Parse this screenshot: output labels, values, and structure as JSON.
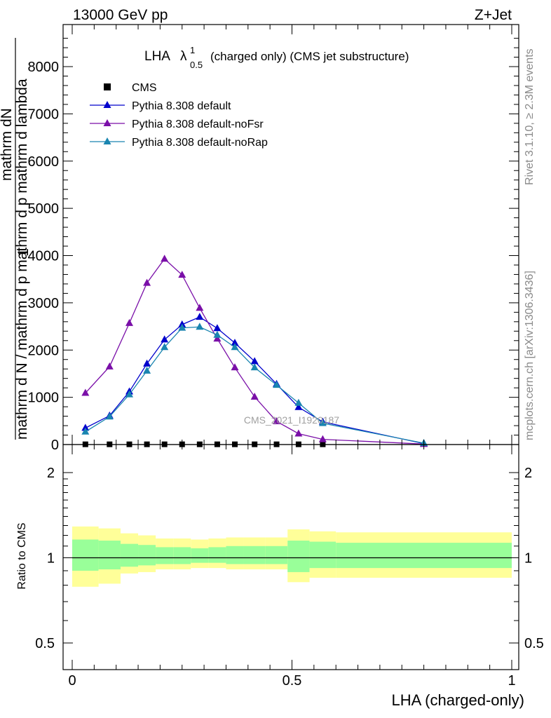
{
  "header": {
    "left": "13000 GeV pp",
    "right": "Z+Jet"
  },
  "plot_title": {
    "main": "LHA",
    "lambda": "λ",
    "superscript": "1",
    "subscript": "0.5",
    "rest": "(charged only) (CMS jet substructure)"
  },
  "side_labels": {
    "rivet": "Rivet 3.1.10, ≥ 2.3M events",
    "mcplots": "mcplots.cern.ch [arXiv:1306.3436]"
  },
  "watermark": "CMS_2021_I1920187",
  "ylabel_main": {
    "one": "1",
    "numerator": "mathrm dN",
    "denominator": "mathrm d N / mathrm d p mathrm d p mathrm d lambda"
  },
  "ylabel_ratio": "Ratio to CMS",
  "xlabel": "LHA (charged-only)",
  "colors": {
    "default": "#0000cc",
    "noFsr": "#7a0fa8",
    "noRap": "#1a85b0",
    "band_outer": "#ffff99",
    "band_inner": "#99ff99"
  },
  "chart_data": [
    {
      "type": "line",
      "title": "LHA λ^1_0.5 (charged only) (CMS jet substructure)",
      "xlim": [
        -0.02,
        1.02
      ],
      "ylim": [
        0,
        8800
      ],
      "yticks": [
        0,
        1000,
        2000,
        3000,
        4000,
        5000,
        6000,
        7000,
        8000
      ],
      "ytick_labels": [
        "0",
        "1000",
        "2000",
        "3000",
        "4000",
        "5000",
        "6000",
        "7000",
        "8000"
      ],
      "legend_position": "top-left",
      "series": [
        {
          "name": "CMS",
          "marker": "square",
          "color": "#000000",
          "x": [
            0.03,
            0.085,
            0.13,
            0.17,
            0.21,
            0.25,
            0.29,
            0.33,
            0.37,
            0.415,
            0.465,
            0.515,
            0.57
          ],
          "y": [
            5,
            5,
            5,
            5,
            5,
            5,
            5,
            5,
            5,
            5,
            5,
            5,
            5
          ]
        },
        {
          "name": "Pythia 8.308 default",
          "marker": "triangle",
          "color": "#0000cc",
          "x": [
            0.03,
            0.085,
            0.13,
            0.17,
            0.21,
            0.25,
            0.29,
            0.33,
            0.37,
            0.415,
            0.465,
            0.515,
            0.57,
            0.8
          ],
          "y": [
            350,
            610,
            1120,
            1710,
            2220,
            2540,
            2700,
            2460,
            2150,
            1760,
            1280,
            790,
            480,
            20
          ]
        },
        {
          "name": "Pythia 8.308 default-noFsr",
          "marker": "triangle",
          "color": "#7a0fa8",
          "x": [
            0.03,
            0.085,
            0.13,
            0.17,
            0.21,
            0.25,
            0.29,
            0.33,
            0.37,
            0.415,
            0.465,
            0.515,
            0.57,
            0.8
          ],
          "y": [
            1090,
            1650,
            2570,
            3420,
            3930,
            3590,
            2890,
            2240,
            1630,
            1010,
            490,
            230,
            110,
            10
          ]
        },
        {
          "name": "Pythia 8.308 default-noRap",
          "marker": "triangle",
          "color": "#1a85b0",
          "x": [
            0.03,
            0.085,
            0.13,
            0.17,
            0.21,
            0.25,
            0.29,
            0.33,
            0.37,
            0.415,
            0.465,
            0.515,
            0.57,
            0.8
          ],
          "y": [
            270,
            590,
            1060,
            1560,
            2060,
            2470,
            2490,
            2320,
            2060,
            1630,
            1260,
            880,
            450,
            30
          ]
        }
      ]
    },
    {
      "type": "area",
      "ylabel": "Ratio to CMS",
      "xlabel": "LHA (charged-only)",
      "xlim": [
        -0.02,
        1.02
      ],
      "ylim": [
        0.4,
        2.3
      ],
      "log_y": true,
      "yticks": [
        0.5,
        1,
        2
      ],
      "ytick_labels": [
        "0.5",
        "1",
        "2"
      ],
      "xticks": [
        0,
        0.5,
        1
      ],
      "xtick_labels": [
        "0",
        "0.5",
        "1"
      ],
      "reference_line": 1,
      "bins": [
        {
          "x0": 0.0,
          "x1": 0.06,
          "outer": [
            0.79,
            1.29
          ],
          "inner": [
            0.9,
            1.16
          ]
        },
        {
          "x0": 0.06,
          "x1": 0.11,
          "outer": [
            0.81,
            1.27
          ],
          "inner": [
            0.91,
            1.15
          ]
        },
        {
          "x0": 0.11,
          "x1": 0.15,
          "outer": [
            0.88,
            1.22
          ],
          "inner": [
            0.93,
            1.12
          ]
        },
        {
          "x0": 0.15,
          "x1": 0.19,
          "outer": [
            0.89,
            1.2
          ],
          "inner": [
            0.94,
            1.11
          ]
        },
        {
          "x0": 0.19,
          "x1": 0.23,
          "outer": [
            0.91,
            1.17
          ],
          "inner": [
            0.95,
            1.09
          ]
        },
        {
          "x0": 0.23,
          "x1": 0.27,
          "outer": [
            0.91,
            1.17
          ],
          "inner": [
            0.95,
            1.09
          ]
        },
        {
          "x0": 0.27,
          "x1": 0.31,
          "outer": [
            0.92,
            1.16
          ],
          "inner": [
            0.96,
            1.08
          ]
        },
        {
          "x0": 0.31,
          "x1": 0.35,
          "outer": [
            0.92,
            1.17
          ],
          "inner": [
            0.96,
            1.09
          ]
        },
        {
          "x0": 0.35,
          "x1": 0.39,
          "outer": [
            0.91,
            1.18
          ],
          "inner": [
            0.95,
            1.1
          ]
        },
        {
          "x0": 0.39,
          "x1": 0.44,
          "outer": [
            0.91,
            1.18
          ],
          "inner": [
            0.95,
            1.1
          ]
        },
        {
          "x0": 0.44,
          "x1": 0.49,
          "outer": [
            0.91,
            1.18
          ],
          "inner": [
            0.95,
            1.1
          ]
        },
        {
          "x0": 0.49,
          "x1": 0.54,
          "outer": [
            0.82,
            1.26
          ],
          "inner": [
            0.89,
            1.15
          ]
        },
        {
          "x0": 0.54,
          "x1": 0.6,
          "outer": [
            0.85,
            1.24
          ],
          "inner": [
            0.92,
            1.14
          ]
        },
        {
          "x0": 0.6,
          "x1": 1.0,
          "outer": [
            0.85,
            1.23
          ],
          "inner": [
            0.92,
            1.13
          ]
        }
      ]
    }
  ]
}
